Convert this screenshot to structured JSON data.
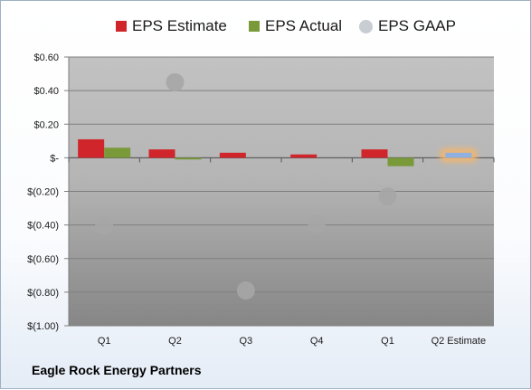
{
  "chart_data": {
    "type": "bar",
    "categories": [
      "Q1",
      "Q2",
      "Q3",
      "Q4",
      "Q1",
      "Q2 Estimate"
    ],
    "series": [
      {
        "name": "EPS Estimate",
        "color": "#d0262b",
        "values": [
          0.11,
          0.05,
          0.03,
          0.02,
          0.05,
          null
        ]
      },
      {
        "name": "EPS Actual",
        "color": "#7a9a3a",
        "values": [
          0.06,
          -0.01,
          null,
          null,
          -0.05,
          0.03
        ]
      },
      {
        "name": "EPS GAAP",
        "color": "#a6a6a6",
        "type": "scatter",
        "values": [
          -0.4,
          0.45,
          -0.79,
          -0.39,
          -0.23,
          null
        ]
      }
    ],
    "ylim": [
      -1.0,
      0.6
    ],
    "yticks": [
      0.6,
      0.4,
      0.2,
      0.0,
      -0.2,
      -0.4,
      -0.6,
      -0.8,
      -1.0
    ],
    "ytick_labels": [
      "$0.60",
      "$0.40",
      "$0.20",
      "$-",
      "$(0.20)",
      "$(0.40)",
      "$(0.60)",
      "$(0.80)",
      "$(1.00)"
    ],
    "highlight": {
      "category": "Q2 Estimate",
      "color": "#8fb0e0",
      "glow": "#f5b56b"
    },
    "grid": true,
    "legend_position": "top"
  },
  "legend": {
    "estimate_label": "EPS Estimate",
    "actual_label": "EPS Actual",
    "gaap_label": "EPS GAAP"
  },
  "company_name": "Eagle Rock Energy Partners"
}
